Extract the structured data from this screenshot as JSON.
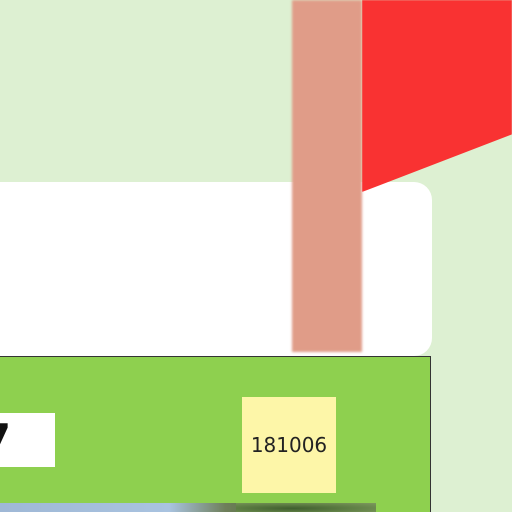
{
  "colors": {
    "background": "#DDF0D2",
    "card": "#FFFFFF",
    "flag_pole": "#E09C88",
    "flag_cloth": "#F93232",
    "panel": "#8ED04F",
    "sticky": "#FDF6A8"
  },
  "panel": {
    "number_fragment": "7",
    "sticky_note": {
      "label": "181006"
    }
  },
  "icons": {
    "flag": "flag-icon",
    "photo": "photo-thumbnail"
  }
}
